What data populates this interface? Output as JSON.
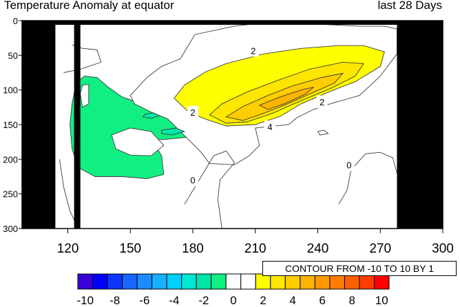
{
  "title": "Temperature Anomaly at equator",
  "period_label": "last 28 Days",
  "contour_info": "CONTOUR FROM -10 TO 10 BY 1",
  "colors": {
    "missing": "#000000",
    "contour_line": "#3a3a3a",
    "bins": [
      "#3a00d6",
      "#0000ff",
      "#0b37ff",
      "#1766ff",
      "#1a8cff",
      "#17b0ff",
      "#00d2ff",
      "#00e8d5",
      "#00e6a8",
      "#11ef83",
      "#ffffff",
      "#ffffff",
      "#ffff00",
      "#ffe600",
      "#ffcd00",
      "#ffb400",
      "#ff9900",
      "#ff7d00",
      "#ff5f00",
      "#ff3c00",
      "#ff0000"
    ]
  },
  "chart_data": {
    "type": "heatmap",
    "title": "Temperature Anomaly at equator",
    "xlabel": "",
    "ylabel": "",
    "xlim": [
      98,
      300
    ],
    "ylim": [
      300,
      0
    ],
    "x_ticks": [
      120,
      150,
      180,
      210,
      240,
      270,
      300
    ],
    "y_ticks": [
      0,
      50,
      100,
      150,
      200,
      250,
      300
    ],
    "contour_levels": {
      "min": -10,
      "max": 10,
      "step": 1
    },
    "colorbar_labels": [
      -10,
      -8,
      -6,
      -4,
      -2,
      0,
      2,
      4,
      6,
      8,
      10
    ],
    "missing_data_columns": [
      [
        98,
        114
      ],
      [
        123,
        126
      ],
      [
        278,
        300
      ]
    ],
    "contour_labels": [
      {
        "text": "2",
        "x": 209,
        "y": 43
      },
      {
        "text": "2",
        "x": 180,
        "y": 132
      },
      {
        "text": "4",
        "x": 217,
        "y": 153
      },
      {
        "text": "2",
        "x": 242,
        "y": 117
      },
      {
        "text": "0",
        "x": 255,
        "y": 208
      },
      {
        "text": "0",
        "x": 180,
        "y": 230
      }
    ]
  }
}
